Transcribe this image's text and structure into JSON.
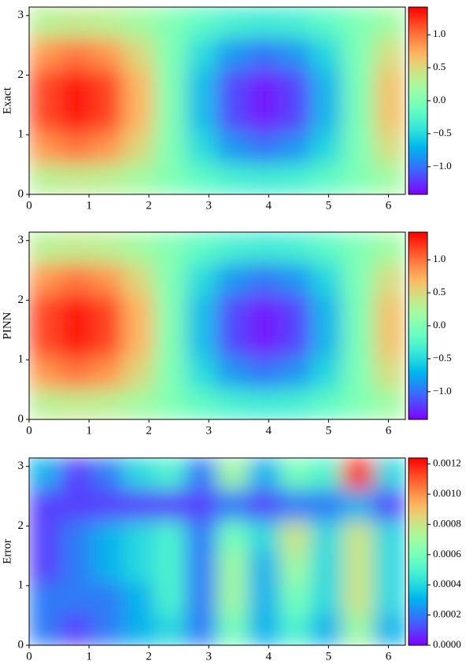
{
  "chart_data": [
    {
      "type": "heatmap",
      "ylabel": "Exact",
      "colormap": "rainbow",
      "xlim": [
        0,
        6.2832
      ],
      "ylim": [
        0,
        3.1416
      ],
      "xticks": [
        0,
        1,
        2,
        3,
        4,
        5,
        6
      ],
      "yticks": [
        0,
        1,
        2,
        3
      ],
      "clim": [
        -1.42,
        1.42
      ],
      "cbar_ticks": [
        {
          "value": -1.0,
          "label": "−1.0"
        },
        {
          "value": -0.5,
          "label": "−0.5"
        },
        {
          "value": 0,
          "label": "0.0"
        },
        0.5,
        {
          "value": 1.0,
          "label": "1.0"
        }
      ],
      "z": [
        [
          0.31,
          0.36,
          0.32,
          0.19,
          0.01,
          -0.18,
          -0.31,
          -0.36,
          -0.32,
          -0.19,
          -0.01,
          0.17
        ],
        [
          0.85,
          0.99,
          0.86,
          0.51,
          0.01,
          -0.48,
          -0.85,
          -0.99,
          -0.86,
          -0.51,
          -0.01,
          0.47
        ],
        [
          1.16,
          1.35,
          1.18,
          0.7,
          0.02,
          -0.66,
          -1.16,
          -1.35,
          -1.18,
          -0.7,
          -0.02,
          0.64
        ],
        [
          1.16,
          1.35,
          1.18,
          0.7,
          0.02,
          -0.66,
          -1.16,
          -1.35,
          -1.18,
          -0.7,
          -0.02,
          0.64
        ],
        [
          0.85,
          0.99,
          0.86,
          0.51,
          0.01,
          -0.48,
          -0.85,
          -0.99,
          -0.86,
          -0.51,
          -0.01,
          0.47
        ],
        [
          0.31,
          0.36,
          0.32,
          0.19,
          0.01,
          -0.18,
          -0.31,
          -0.36,
          -0.32,
          -0.19,
          -0.01,
          0.17
        ]
      ]
    },
    {
      "type": "heatmap",
      "ylabel": "PINN",
      "colormap": "rainbow",
      "xlim": [
        0,
        6.2832
      ],
      "ylim": [
        0,
        3.1416
      ],
      "xticks": [
        0,
        1,
        2,
        3,
        4,
        5,
        6
      ],
      "yticks": [
        0,
        1,
        2,
        3
      ],
      "clim": [
        -1.42,
        1.42
      ],
      "cbar_ticks": [
        {
          "value": -1.0,
          "label": "−1.0"
        },
        {
          "value": -0.5,
          "label": "−0.5"
        },
        {
          "value": 0,
          "label": "0.0"
        },
        0.5,
        {
          "value": 1.0,
          "label": "1.0"
        }
      ],
      "z": [
        [
          0.31,
          0.36,
          0.32,
          0.19,
          0.01,
          -0.18,
          -0.31,
          -0.36,
          -0.32,
          -0.19,
          -0.01,
          0.17
        ],
        [
          0.85,
          0.99,
          0.86,
          0.51,
          0.01,
          -0.48,
          -0.85,
          -0.99,
          -0.86,
          -0.51,
          -0.01,
          0.47
        ],
        [
          1.16,
          1.35,
          1.18,
          0.7,
          0.02,
          -0.66,
          -1.16,
          -1.35,
          -1.18,
          -0.7,
          -0.02,
          0.64
        ],
        [
          1.16,
          1.35,
          1.18,
          0.7,
          0.02,
          -0.66,
          -1.16,
          -1.35,
          -1.18,
          -0.7,
          -0.02,
          0.64
        ],
        [
          0.85,
          0.99,
          0.86,
          0.51,
          0.01,
          -0.48,
          -0.85,
          -0.99,
          -0.86,
          -0.51,
          -0.01,
          0.47
        ],
        [
          0.31,
          0.36,
          0.32,
          0.19,
          0.01,
          -0.18,
          -0.31,
          -0.36,
          -0.32,
          -0.19,
          -0.01,
          0.17
        ]
      ]
    },
    {
      "type": "heatmap",
      "ylabel": "Error",
      "colormap": "rainbow",
      "xlim": [
        0,
        6.2832
      ],
      "ylim": [
        0,
        3.1416
      ],
      "xticks": [
        0,
        1,
        2,
        3,
        4,
        5,
        6
      ],
      "yticks": [
        0,
        1,
        2,
        3
      ],
      "clim": [
        0,
        0.00124
      ],
      "cbar_ticks": [
        {
          "value": 0,
          "label": "0.0000"
        },
        0.0002,
        0.0004,
        0.0006,
        0.0008,
        {
          "value": 0.001,
          "label": "0.0010"
        },
        0.0012
      ],
      "z": [
        [
          0.0002,
          0.0001,
          0.0002,
          0.0003,
          0.0004,
          0.0002,
          0.0006,
          0.0003,
          0.0005,
          0.0003,
          0.0007,
          0.0003
        ],
        [
          0.0002,
          0.0002,
          0.0002,
          0.0003,
          0.0005,
          0.0002,
          0.0007,
          0.0003,
          0.0006,
          0.0004,
          0.0008,
          0.0004
        ],
        [
          0.0001,
          0.0002,
          0.0003,
          0.0004,
          0.0005,
          0.0002,
          0.0007,
          0.0003,
          0.0007,
          0.0004,
          0.0008,
          0.0004
        ],
        [
          0.0001,
          0.0002,
          0.0003,
          0.0004,
          0.0005,
          0.0002,
          0.0006,
          0.0004,
          0.0008,
          0.0004,
          0.0008,
          0.0004
        ],
        [
          0.0001,
          0.0001,
          0.0001,
          0.0001,
          0.0001,
          0.0001,
          0.0002,
          0.0001,
          0.0002,
          0.0002,
          0.0003,
          0.0001
        ],
        [
          0.0003,
          0.0001,
          0.0002,
          0.0004,
          0.0005,
          0.0002,
          0.0007,
          0.0003,
          0.0006,
          0.0005,
          0.0012,
          0.0004
        ]
      ]
    }
  ]
}
